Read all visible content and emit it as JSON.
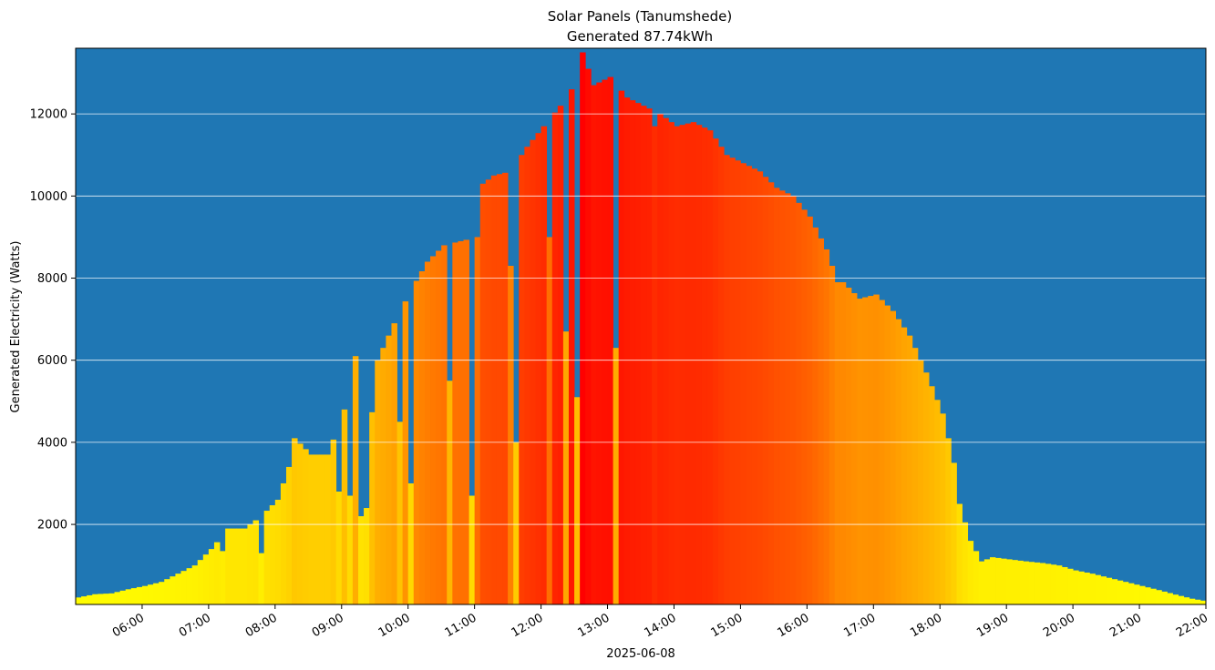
{
  "chart_data": {
    "type": "bar",
    "title": "Solar Panels (Tanumshede)",
    "subtitle": "Generated 87.74kWh",
    "xlabel": "2025-06-08",
    "ylabel": "Generated Electricity (Watts)",
    "date": "2025-06-08",
    "xlim": [
      "05:00",
      "22:00"
    ],
    "ylim": [
      50,
      13600
    ],
    "yticks": [
      2000,
      4000,
      6000,
      8000,
      10000,
      12000
    ],
    "ytick_labels": [
      "2000",
      "4000",
      "6000",
      "8000",
      "10000",
      "12000"
    ],
    "xticks": [
      "06:00",
      "07:00",
      "08:00",
      "09:00",
      "10:00",
      "11:00",
      "12:00",
      "13:00",
      "14:00",
      "15:00",
      "16:00",
      "17:00",
      "18:00",
      "19:00",
      "20:00",
      "21:00",
      "22:00"
    ],
    "grid": "horizontal",
    "background_color": "#1f77b4",
    "grid_color": "#ffffff",
    "color_scale": [
      "#ffff00",
      "#ffa500",
      "#ff0000"
    ],
    "interval_minutes": 5,
    "points": [
      [
        "05:00",
        220
      ],
      [
        "05:15",
        300
      ],
      [
        "05:30",
        320
      ],
      [
        "05:45",
        420
      ],
      [
        "06:00",
        500
      ],
      [
        "06:15",
        600
      ],
      [
        "06:30",
        800
      ],
      [
        "06:45",
        1000
      ],
      [
        "07:00",
        1400
      ],
      [
        "07:15",
        1900
      ],
      [
        "07:30",
        1900
      ],
      [
        "07:45",
        2200
      ],
      [
        "08:00",
        2600
      ],
      [
        "08:10",
        3400
      ],
      [
        "08:15",
        4100
      ],
      [
        "08:30",
        3700
      ],
      [
        "08:45",
        3700
      ],
      [
        "09:00",
        4800
      ],
      [
        "09:10",
        6100
      ],
      [
        "09:15",
        2200
      ],
      [
        "09:30",
        6000
      ],
      [
        "09:45",
        6900
      ],
      [
        "10:00",
        7700
      ],
      [
        "10:15",
        8400
      ],
      [
        "10:30",
        8800
      ],
      [
        "10:45",
        8900
      ],
      [
        "11:00",
        9000
      ],
      [
        "11:05",
        10300
      ],
      [
        "11:15",
        10500
      ],
      [
        "11:30",
        10600
      ],
      [
        "11:45",
        11200
      ],
      [
        "12:00",
        11700
      ],
      [
        "12:15",
        12200
      ],
      [
        "12:30",
        12800
      ],
      [
        "12:35",
        13500
      ],
      [
        "12:45",
        12700
      ],
      [
        "13:00",
        12900
      ],
      [
        "13:15",
        12400
      ],
      [
        "13:30",
        12200
      ],
      [
        "13:45",
        12000
      ],
      [
        "14:00",
        11700
      ],
      [
        "14:15",
        11800
      ],
      [
        "14:30",
        11600
      ],
      [
        "14:45",
        11000
      ],
      [
        "15:00",
        10800
      ],
      [
        "15:15",
        10600
      ],
      [
        "15:30",
        10200
      ],
      [
        "15:45",
        10000
      ],
      [
        "16:00",
        9500
      ],
      [
        "16:15",
        8700
      ],
      [
        "16:25",
        7900
      ],
      [
        "16:30",
        7900
      ],
      [
        "16:45",
        7500
      ],
      [
        "17:00",
        7600
      ],
      [
        "17:15",
        7200
      ],
      [
        "17:30",
        6600
      ],
      [
        "17:45",
        5700
      ],
      [
        "18:00",
        4700
      ],
      [
        "18:10",
        3500
      ],
      [
        "18:15",
        2500
      ],
      [
        "18:25",
        1600
      ],
      [
        "18:35",
        1100
      ],
      [
        "18:45",
        1200
      ],
      [
        "19:00",
        1150
      ],
      [
        "19:15",
        1100
      ],
      [
        "19:30",
        1060
      ],
      [
        "19:45",
        1000
      ],
      [
        "20:00",
        880
      ],
      [
        "20:15",
        800
      ],
      [
        "20:30",
        700
      ],
      [
        "20:45",
        600
      ],
      [
        "21:00",
        500
      ],
      [
        "21:15",
        400
      ],
      [
        "21:30",
        290
      ],
      [
        "21:45",
        190
      ],
      [
        "22:00",
        120
      ]
    ],
    "dips": [
      [
        "07:10",
        1350
      ],
      [
        "07:22",
        1600
      ],
      [
        "07:45",
        1300
      ],
      [
        "08:55",
        2800
      ],
      [
        "09:05",
        2700
      ],
      [
        "09:20",
        2400
      ],
      [
        "09:37",
        2900
      ],
      [
        "09:50",
        4500
      ],
      [
        "10:00",
        3000
      ],
      [
        "10:35",
        5500
      ],
      [
        "10:47",
        3700
      ],
      [
        "10:55",
        2700
      ],
      [
        "11:30",
        8300
      ],
      [
        "11:35",
        4000
      ],
      [
        "12:05",
        9000
      ],
      [
        "12:20",
        6700
      ],
      [
        "12:30",
        5100
      ],
      [
        "13:05",
        6300
      ],
      [
        "13:40",
        11700
      ]
    ]
  }
}
